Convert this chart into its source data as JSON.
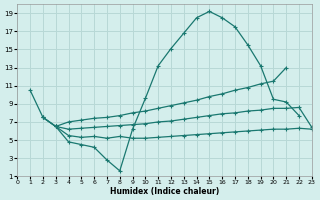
{
  "xlabel": "Humidex (Indice chaleur)",
  "bg_color": "#d4eeec",
  "grid_color": "#b8d8d6",
  "line_color": "#1a7870",
  "xlim": [
    0,
    23
  ],
  "ylim": [
    1,
    20
  ],
  "xticks": [
    0,
    1,
    2,
    3,
    4,
    5,
    6,
    7,
    8,
    9,
    10,
    11,
    12,
    13,
    14,
    15,
    16,
    17,
    18,
    19,
    20,
    21,
    22,
    23
  ],
  "yticks": [
    1,
    3,
    5,
    7,
    9,
    11,
    13,
    15,
    17,
    19
  ],
  "curve1": {
    "x": [
      1,
      2,
      3,
      4,
      5,
      6,
      7,
      8,
      9,
      10,
      11,
      12,
      13,
      14,
      15,
      16,
      17,
      18,
      19,
      20,
      21,
      22
    ],
    "y": [
      10.5,
      7.5,
      6.5,
      4.8,
      4.5,
      4.2,
      2.8,
      1.6,
      6.2,
      9.6,
      13.2,
      15.1,
      16.8,
      18.5,
      19.2,
      18.5,
      17.5,
      15.5,
      13.2,
      9.5,
      9.2,
      7.7
    ]
  },
  "curve2": {
    "x": [
      2,
      3,
      4,
      5,
      6,
      7,
      8,
      9,
      10,
      11,
      12,
      13,
      14,
      15,
      16,
      17,
      18,
      19,
      20,
      21
    ],
    "y": [
      7.5,
      6.5,
      7.0,
      7.2,
      7.4,
      7.5,
      7.7,
      8.0,
      8.2,
      8.5,
      8.8,
      9.1,
      9.4,
      9.8,
      10.1,
      10.5,
      10.8,
      11.2,
      11.5,
      13.0
    ]
  },
  "curve3": {
    "x": [
      2,
      3,
      4,
      5,
      6,
      7,
      8,
      9,
      10,
      11,
      12,
      13,
      14,
      15,
      16,
      17,
      18,
      19,
      20,
      21,
      22,
      23
    ],
    "y": [
      7.5,
      6.5,
      6.2,
      6.3,
      6.4,
      6.5,
      6.6,
      6.7,
      6.8,
      7.0,
      7.1,
      7.3,
      7.5,
      7.7,
      7.9,
      8.0,
      8.2,
      8.3,
      8.5,
      8.5,
      8.6,
      6.4
    ]
  },
  "curve4": {
    "x": [
      3,
      4,
      5,
      6,
      7,
      8,
      9,
      10,
      11,
      12,
      13,
      14,
      15,
      16,
      17,
      18,
      19,
      20,
      21,
      22,
      23
    ],
    "y": [
      6.5,
      5.5,
      5.3,
      5.4,
      5.2,
      5.4,
      5.2,
      5.2,
      5.3,
      5.4,
      5.5,
      5.6,
      5.7,
      5.8,
      5.9,
      6.0,
      6.1,
      6.2,
      6.2,
      6.3,
      6.2
    ]
  }
}
